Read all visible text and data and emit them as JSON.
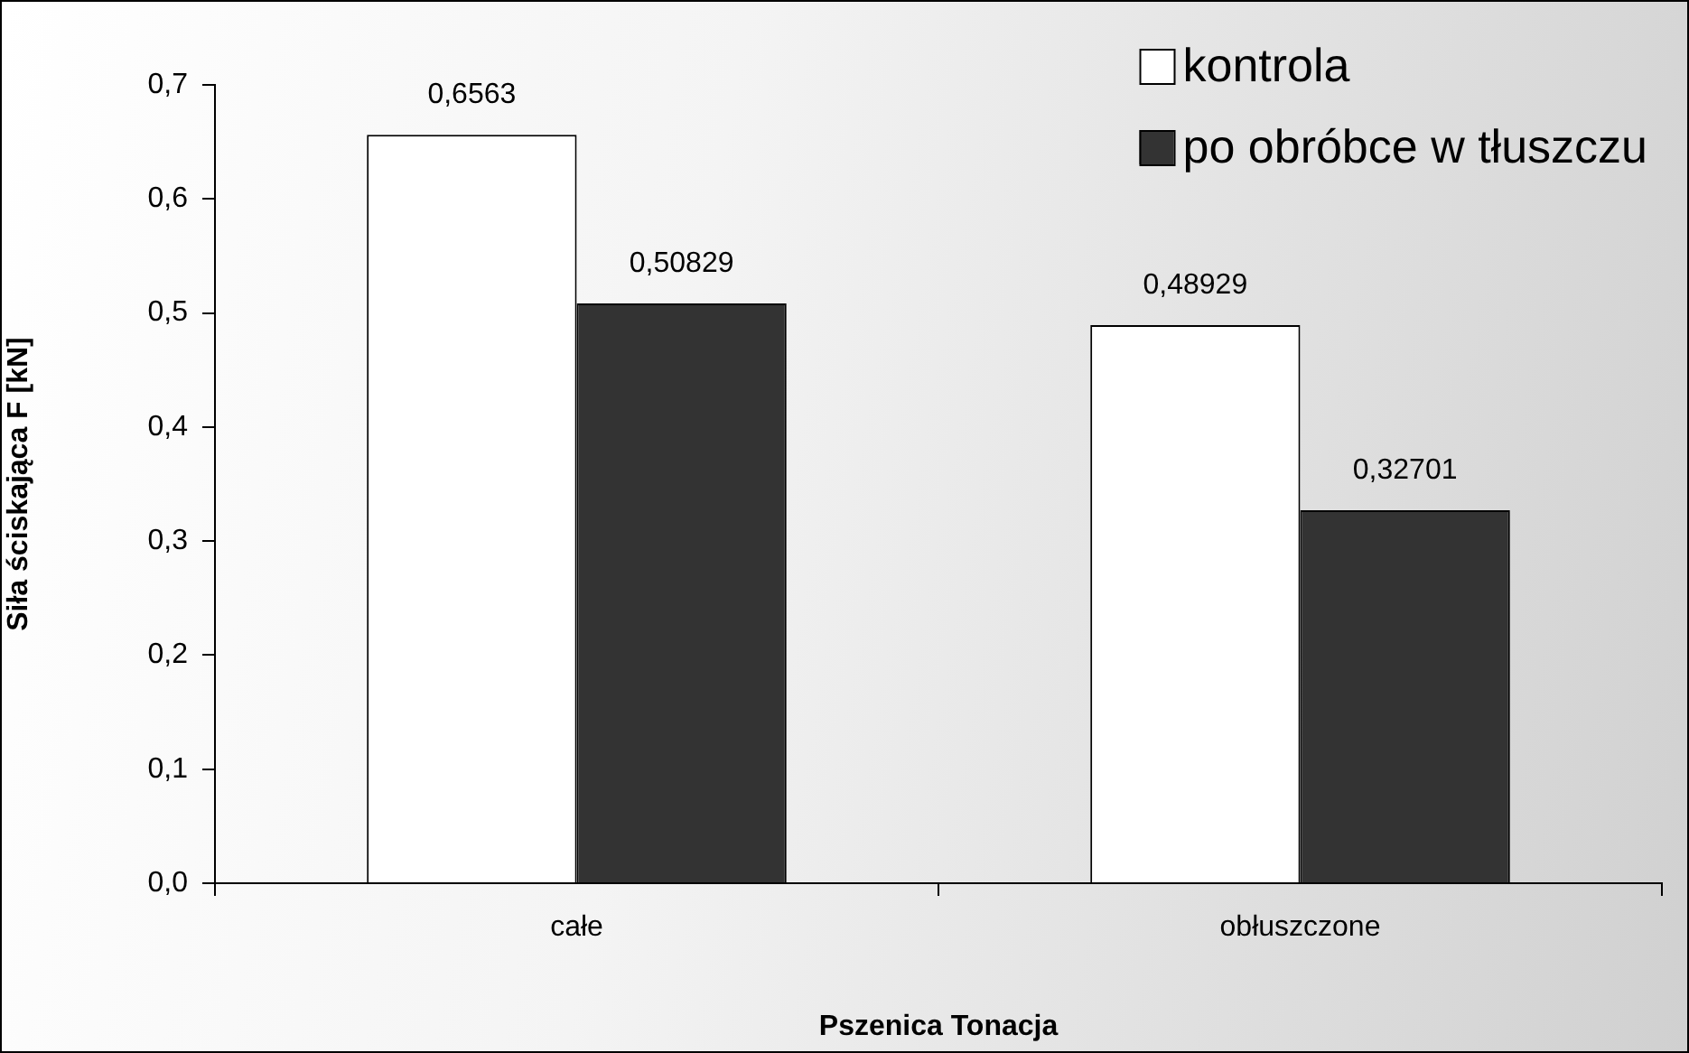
{
  "chart_data": {
    "type": "bar",
    "xlabel": "Pszenica Tonacja",
    "ylabel": "Siła ściskająca F [kN]",
    "categories": [
      "całe",
      "obłuszczone"
    ],
    "series": [
      {
        "name": "kontrola",
        "color": "#ffffff",
        "values": [
          0.6563,
          0.48929
        ],
        "value_labels": [
          "0,6563",
          "0,48929"
        ]
      },
      {
        "name": "po obróbce w tłuszczu",
        "color": "#333333",
        "values": [
          0.50829,
          0.32701
        ],
        "value_labels": [
          "0,50829",
          "0,32701"
        ]
      }
    ],
    "ylim": [
      0,
      0.7
    ],
    "yticks": [
      {
        "value": 0,
        "label": "0,0"
      },
      {
        "value": 0.1,
        "label": "0,1"
      },
      {
        "value": 0.2,
        "label": "0,2"
      },
      {
        "value": 0.3,
        "label": "0,3"
      },
      {
        "value": 0.4,
        "label": "0,4"
      },
      {
        "value": 0.5,
        "label": "0,5"
      },
      {
        "value": 0.6,
        "label": "0,6"
      },
      {
        "value": 0.7,
        "label": "0,7"
      }
    ],
    "grid": false,
    "legend": "top right"
  }
}
